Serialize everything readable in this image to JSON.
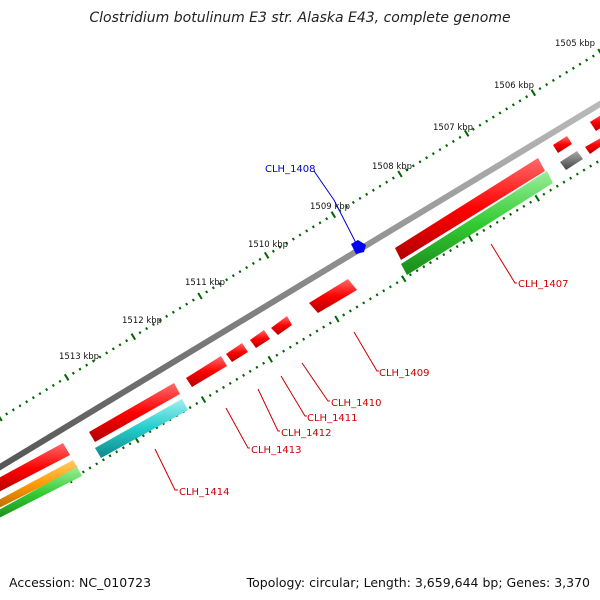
{
  "title": "Clostridium botulinum E3 str. Alaska E43, complete genome",
  "footer": {
    "accession": "Accession: NC_010723",
    "topology": "Topology: circular; Length: 3,659,644 bp; Genes: 3,370"
  },
  "ticks": [
    "1505 kbp",
    "1506 kbp",
    "1507 kbp",
    "1508 kbp",
    "1509 kbp",
    "1510 kbp",
    "1511 kbp",
    "1512 kbp",
    "1513 kbp"
  ],
  "genes": [
    {
      "name": "CLH_1407",
      "color": "#cc0000"
    },
    {
      "name": "CLH_1408",
      "color": "#0000cc"
    },
    {
      "name": "CLH_1409",
      "color": "#cc0000"
    },
    {
      "name": "CLH_1410",
      "color": "#cc0000"
    },
    {
      "name": "CLH_1411",
      "color": "#cc0000"
    },
    {
      "name": "CLH_1412",
      "color": "#cc0000"
    },
    {
      "name": "CLH_1413",
      "color": "#cc0000"
    },
    {
      "name": "CLH_1414",
      "color": "#cc0000"
    }
  ],
  "colors": {
    "cds": "#ff0000",
    "gene": "#33cc33",
    "rrna": "#33cccc",
    "other": "#ff9900",
    "pseudo": "#777777",
    "misc": "#0000ff",
    "backbone": "#888888",
    "tick": "#006600"
  }
}
